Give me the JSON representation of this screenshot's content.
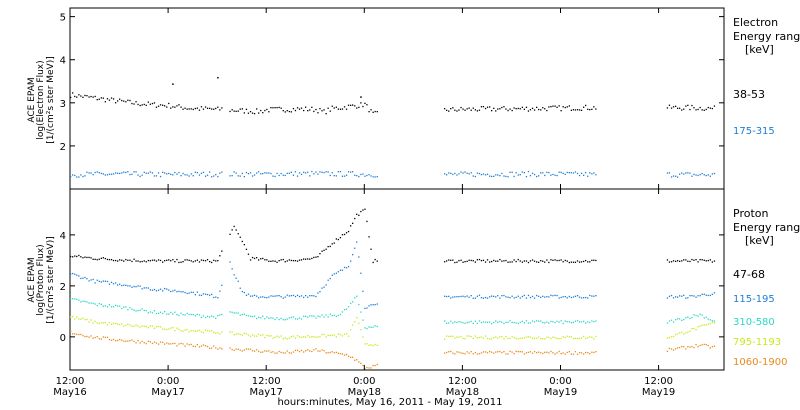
{
  "chart_data": [
    {
      "type": "scatter",
      "panel": "electron",
      "ylabel": [
        "ACE EPAM",
        "log(Electron Flux)",
        "[1/(cm²s ster MeV)]"
      ],
      "ylim": [
        1,
        5.2
      ],
      "yticks": [
        2,
        3,
        4,
        5
      ],
      "legend_title": [
        "Electron",
        "Energy range",
        "[keV]"
      ],
      "series": [
        {
          "name": "38-53",
          "color": "#000000",
          "points": [
            [
              0,
              3.2
            ],
            [
              2,
              3.15
            ],
            [
              4,
              3.1
            ],
            [
              6,
              3.05
            ],
            [
              8,
              3.0
            ],
            [
              10,
              2.97
            ],
            [
              12,
              2.95
            ],
            [
              14,
              2.9
            ],
            [
              15,
              2.88
            ],
            [
              17,
              2.87
            ],
            [
              18,
              2.86
            ],
            [
              18.5,
              2.87
            ],
            [
              19,
              2.85
            ],
            [
              20,
              2.84
            ],
            [
              21,
              2.83
            ],
            [
              22,
              2.82
            ],
            [
              23,
              2.81
            ],
            [
              24,
              2.85
            ],
            [
              26,
              2.86
            ],
            [
              28,
              2.87
            ],
            [
              30,
              2.86
            ],
            [
              31,
              2.8
            ],
            [
              32,
              2.88
            ],
            [
              33,
              2.9
            ],
            [
              35,
              2.95
            ],
            [
              36,
              2.98
            ],
            [
              37,
              2.75
            ],
            [
              46,
              2.85
            ],
            [
              48,
              2.86
            ],
            [
              52,
              2.87
            ],
            [
              56,
              2.88
            ],
            [
              60,
              2.89
            ],
            [
              62,
              2.9
            ],
            [
              64,
              2.9
            ],
            [
              73,
              2.9
            ],
            [
              76,
              2.9
            ],
            [
              79,
              2.88
            ]
          ]
        },
        {
          "name": "175-315",
          "color": "#1e7ed6",
          "points": [
            [
              0,
              1.35
            ],
            [
              6,
              1.36
            ],
            [
              12,
              1.35
            ],
            [
              18,
              1.36
            ],
            [
              24,
              1.36
            ],
            [
              30,
              1.37
            ],
            [
              35,
              1.36
            ],
            [
              36.5,
              1.35
            ],
            [
              46,
              1.35
            ],
            [
              52,
              1.36
            ],
            [
              58,
              1.36
            ],
            [
              64,
              1.35
            ],
            [
              73,
              1.35
            ],
            [
              79,
              1.34
            ]
          ]
        }
      ],
      "gaps": [
        [
          18.7,
          19.3
        ],
        [
          37.5,
          45.7
        ],
        [
          64.4,
          73
        ]
      ],
      "annotations": [
        [
          12.5,
          3.45
        ],
        [
          18,
          3.6
        ],
        [
          35.5,
          3.15
        ]
      ]
    },
    {
      "type": "scatter",
      "panel": "proton",
      "ylabel": [
        "ACE EPAM",
        "log(Proton Flux)",
        "[1/(cm²s ster MeV)]"
      ],
      "ylim": [
        -1.3,
        5.8
      ],
      "yticks": [
        0,
        2,
        4
      ],
      "legend_title": [
        "Proton",
        "Energy range",
        "[keV]"
      ],
      "series": [
        {
          "name": "47-68",
          "color": "#000000",
          "points": [
            [
              0,
              3.2
            ],
            [
              3,
              3.1
            ],
            [
              6,
              3.05
            ],
            [
              10,
              3.0
            ],
            [
              14,
              3.0
            ],
            [
              18,
              3.0
            ],
            [
              19.5,
              4.1
            ],
            [
              20,
              4.3
            ],
            [
              21,
              3.8
            ],
            [
              22,
              3.1
            ],
            [
              25,
              3.0
            ],
            [
              28,
              3.05
            ],
            [
              30,
              3.1
            ],
            [
              32,
              3.7
            ],
            [
              34,
              4.2
            ],
            [
              35,
              4.8
            ],
            [
              36,
              5.0
            ],
            [
              37,
              3.0
            ],
            [
              46,
              3.0
            ],
            [
              52,
              3.0
            ],
            [
              56,
              3.0
            ],
            [
              58,
              3.0
            ],
            [
              64,
              3.0
            ],
            [
              73,
              3.0
            ],
            [
              79,
              3.0
            ]
          ]
        },
        {
          "name": "115-195",
          "color": "#1e7ed6",
          "points": [
            [
              0,
              2.5
            ],
            [
              3,
              2.2
            ],
            [
              6,
              2.1
            ],
            [
              10,
              1.9
            ],
            [
              14,
              1.8
            ],
            [
              18,
              1.6
            ],
            [
              19.5,
              3.0
            ],
            [
              20,
              2.5
            ],
            [
              21,
              1.8
            ],
            [
              22,
              1.6
            ],
            [
              26,
              1.6
            ],
            [
              30,
              1.65
            ],
            [
              32,
              2.4
            ],
            [
              34,
              2.8
            ],
            [
              35,
              3.8
            ],
            [
              36,
              1.2
            ],
            [
              46,
              1.6
            ],
            [
              52,
              1.6
            ],
            [
              58,
              1.6
            ],
            [
              64,
              1.6
            ],
            [
              73,
              1.6
            ],
            [
              76,
              1.6
            ],
            [
              78,
              1.7
            ],
            [
              79,
              1.7
            ]
          ]
        },
        {
          "name": "310-580",
          "color": "#2ed6c8",
          "points": [
            [
              0,
              1.5
            ],
            [
              3,
              1.3
            ],
            [
              6,
              1.2
            ],
            [
              10,
              1.0
            ],
            [
              14,
              0.9
            ],
            [
              18,
              0.8
            ],
            [
              19.5,
              1.0
            ],
            [
              22,
              0.8
            ],
            [
              26,
              0.75
            ],
            [
              30,
              0.8
            ],
            [
              33,
              0.9
            ],
            [
              34,
              1.2
            ],
            [
              35,
              1.6
            ],
            [
              36,
              0.4
            ],
            [
              46,
              0.6
            ],
            [
              52,
              0.6
            ],
            [
              58,
              0.6
            ],
            [
              64,
              0.6
            ],
            [
              73,
              0.6
            ],
            [
              77,
              0.9
            ],
            [
              79,
              0.6
            ]
          ]
        },
        {
          "name": "795-1193",
          "color": "#c8e81e",
          "points": [
            [
              0,
              0.8
            ],
            [
              3,
              0.6
            ],
            [
              6,
              0.5
            ],
            [
              10,
              0.4
            ],
            [
              14,
              0.3
            ],
            [
              18,
              0.2
            ],
            [
              22,
              0.1
            ],
            [
              26,
              0.0
            ],
            [
              30,
              0.05
            ],
            [
              34,
              0.1
            ],
            [
              35,
              0.8
            ],
            [
              36,
              -0.3
            ],
            [
              46,
              0.0
            ],
            [
              52,
              0.0
            ],
            [
              58,
              0.0
            ],
            [
              64,
              0.0
            ],
            [
              73,
              0.0
            ],
            [
              77,
              0.4
            ],
            [
              79,
              0.6
            ]
          ]
        },
        {
          "name": "1060-1900",
          "color": "#e88a1e",
          "points": [
            [
              0,
              0.2
            ],
            [
              3,
              0.0
            ],
            [
              6,
              -0.1
            ],
            [
              10,
              -0.2
            ],
            [
              14,
              -0.3
            ],
            [
              18,
              -0.4
            ],
            [
              22,
              -0.5
            ],
            [
              26,
              -0.6
            ],
            [
              30,
              -0.5
            ],
            [
              34,
              -0.7
            ],
            [
              35,
              -0.9
            ],
            [
              36,
              -1.2
            ],
            [
              46,
              -0.6
            ],
            [
              52,
              -0.6
            ],
            [
              58,
              -0.6
            ],
            [
              64,
              -0.6
            ],
            [
              73,
              -0.5
            ],
            [
              77,
              -0.3
            ],
            [
              79,
              -0.4
            ]
          ]
        }
      ],
      "gaps": [
        [
          18.7,
          19.3
        ],
        [
          37.5,
          45.7
        ],
        [
          64.4,
          73
        ]
      ]
    }
  ],
  "xaxis": {
    "range": [
      "2011-05-16T12:00",
      "2011-05-19T20:00"
    ],
    "ticks": [
      {
        "hour": 0,
        "time": "12:00",
        "date": "May16"
      },
      {
        "hour": 12,
        "time": "0:00",
        "date": "May17"
      },
      {
        "hour": 24,
        "time": "12:00",
        "date": "May17"
      },
      {
        "hour": 36,
        "time": "0:00",
        "date": "May18"
      },
      {
        "hour": 48,
        "time": "12:00",
        "date": "May18"
      },
      {
        "hour": 60,
        "time": "0:00",
        "date": "May19"
      },
      {
        "hour": 72,
        "time": "12:00",
        "date": "May19"
      }
    ],
    "label": "hours:minutes, May 16, 2011 - May 19, 2011"
  }
}
